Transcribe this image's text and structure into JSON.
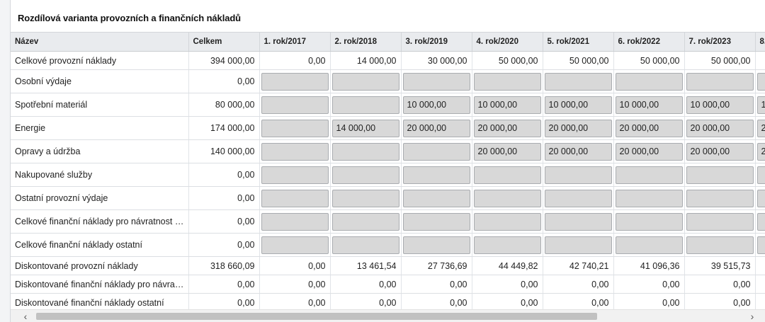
{
  "panel": {
    "title": "Rozdílová varianta provozních a finančních nákladů"
  },
  "table": {
    "columns": [
      "Název",
      "Celkem",
      "1. rok/2017",
      "2. rok/2018",
      "3. rok/2019",
      "4. rok/2020",
      "5. rok/2021",
      "6. rok/2022",
      "7. rok/2023",
      "8."
    ],
    "rows": [
      {
        "kind": "plain",
        "name": "Celkové provozní náklady",
        "total": "394 000,00",
        "years": [
          "0,00",
          "14 000,00",
          "30 000,00",
          "50 000,00",
          "50 000,00",
          "50 000,00",
          "50 000,00",
          ""
        ]
      },
      {
        "kind": "edit",
        "name": "Osobní výdaje",
        "total": "0,00",
        "years": [
          "",
          "",
          "",
          "",
          "",
          "",
          "",
          ""
        ]
      },
      {
        "kind": "edit",
        "name": "Spotřební materiál",
        "total": "80 000,00",
        "years": [
          "",
          "",
          "10 000,00",
          "10 000,00",
          "10 000,00",
          "10 000,00",
          "10 000,00",
          "1"
        ]
      },
      {
        "kind": "edit",
        "name": "Energie",
        "total": "174 000,00",
        "years": [
          "",
          "14 000,00",
          "20 000,00",
          "20 000,00",
          "20 000,00",
          "20 000,00",
          "20 000,00",
          "2"
        ]
      },
      {
        "kind": "edit",
        "name": "Opravy a údržba",
        "total": "140 000,00",
        "years": [
          "",
          "",
          "",
          "20 000,00",
          "20 000,00",
          "20 000,00",
          "20 000,00",
          "2"
        ]
      },
      {
        "kind": "edit",
        "name": "Nakupované služby",
        "total": "0,00",
        "years": [
          "",
          "",
          "",
          "",
          "",
          "",
          "",
          ""
        ]
      },
      {
        "kind": "edit",
        "name": "Ostatní provozní výdaje",
        "total": "0,00",
        "years": [
          "",
          "",
          "",
          "",
          "",
          "",
          "",
          ""
        ]
      },
      {
        "kind": "edit",
        "name": "Celkové finanční náklady pro návratnost i...",
        "total": "0,00",
        "years": [
          "",
          "",
          "",
          "",
          "",
          "",
          "",
          ""
        ]
      },
      {
        "kind": "edit",
        "name": "Celkové finanční náklady ostatní",
        "total": "0,00",
        "years": [
          "",
          "",
          "",
          "",
          "",
          "",
          "",
          ""
        ]
      },
      {
        "kind": "plain",
        "name": "Diskontované provozní náklady",
        "total": "318 660,09",
        "years": [
          "0,00",
          "13 461,54",
          "27 736,69",
          "44 449,82",
          "42 740,21",
          "41 096,36",
          "39 515,73",
          ""
        ]
      },
      {
        "kind": "plain",
        "name": "Diskontované finanční náklady pro návrat...",
        "total": "0,00",
        "years": [
          "0,00",
          "0,00",
          "0,00",
          "0,00",
          "0,00",
          "0,00",
          "0,00",
          ""
        ]
      },
      {
        "kind": "plain",
        "name": "Diskontované finanční náklady ostatní",
        "total": "0,00",
        "years": [
          "0,00",
          "0,00",
          "0,00",
          "0,00",
          "0,00",
          "0,00",
          "0,00",
          ""
        ]
      }
    ]
  },
  "scrollbar": {
    "left_arrow": "‹",
    "right_arrow": "›"
  }
}
